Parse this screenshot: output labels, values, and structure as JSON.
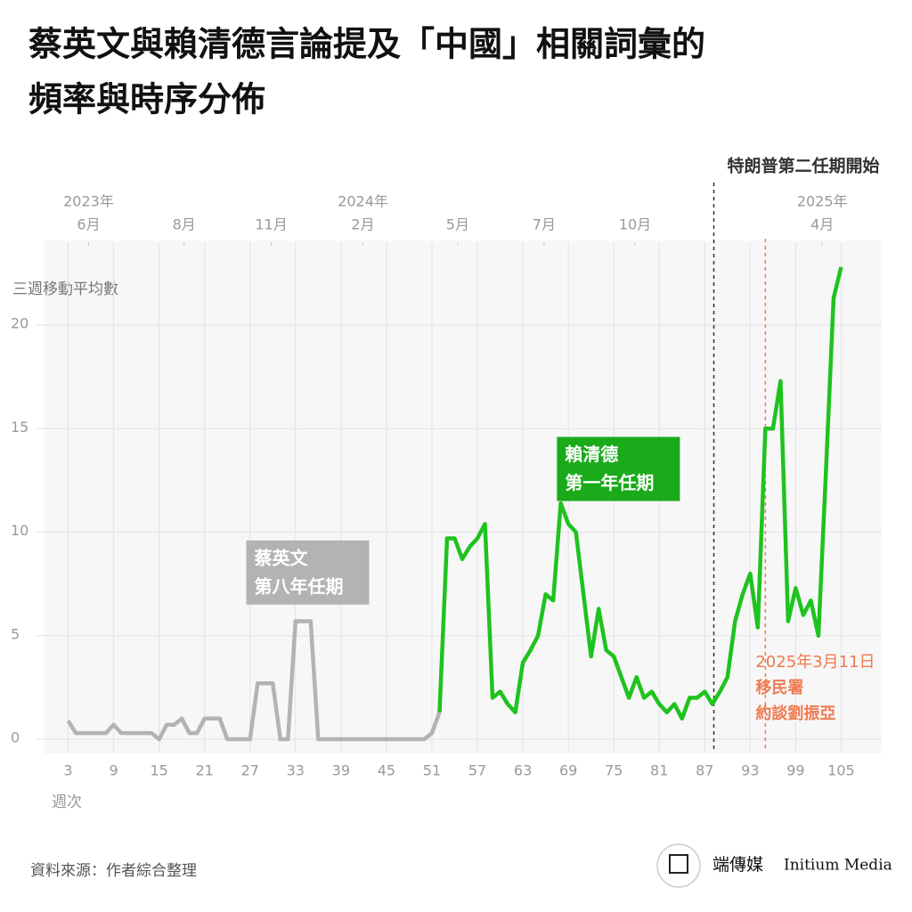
{
  "chart_data": {
    "type": "line",
    "title": [
      "蔡英文與賴清德言論提及「中國」相關詞彙的",
      "頻率與時序分佈"
    ],
    "y_label": "三週移動平均數",
    "x_label": "週次",
    "source": "資料來源：作者綜合整理",
    "brand": {
      "cn": "端傳媒",
      "en": "Initium Media"
    },
    "xlim": [
      0,
      110
    ],
    "ylim": [
      -0.6,
      24
    ],
    "xticks": [
      3,
      9,
      15,
      21,
      27,
      33,
      39,
      45,
      51,
      57,
      63,
      69,
      75,
      81,
      87,
      93,
      99,
      105
    ],
    "yticks": [
      0,
      5,
      10,
      15,
      20
    ],
    "grid": true,
    "top_ticks": [
      {
        "value": 5.7,
        "label": "6月",
        "year": "2023年"
      },
      {
        "value": 18.3,
        "label": "8月"
      },
      {
        "value": 29.8,
        "label": "11月"
      },
      {
        "value": 41.9,
        "label": "2月",
        "year": "2024年"
      },
      {
        "value": 54.4,
        "label": "5月"
      },
      {
        "value": 65.8,
        "label": "7月"
      },
      {
        "value": 77.8,
        "label": "10月"
      },
      {
        "value": 102.5,
        "label": "4月",
        "year": "2025年"
      }
    ],
    "vlines": [
      {
        "value": 88.2,
        "color": "#333333",
        "lines": [
          "特朗普第二任期開始"
        ]
      },
      {
        "value": 95.0,
        "color": "#f07a50",
        "lines": [
          "2025年3月11日",
          "移民署",
          "約談劉振亞"
        ]
      }
    ],
    "series": [
      {
        "name": "蔡英文第八年任期",
        "label_lines": [
          "蔡英文",
          "第八年任期"
        ],
        "label_at": [
          26.5,
          9.6
        ],
        "color": "#b3b3b3",
        "x": [
          3,
          4,
          5,
          6,
          7,
          8,
          9,
          10,
          11,
          12,
          13,
          14,
          15,
          16,
          17,
          18,
          19,
          20,
          21,
          22,
          23,
          24,
          25,
          26,
          27,
          28,
          29,
          30,
          31,
          32,
          33,
          34,
          35,
          36,
          37,
          38,
          39,
          40,
          41,
          42,
          43,
          44,
          45,
          46,
          47,
          48,
          49,
          50,
          51,
          52
        ],
        "values": [
          0.9,
          0.3,
          0.3,
          0.3,
          0.3,
          0.3,
          0.7,
          0.3,
          0.3,
          0.3,
          0.3,
          0.3,
          0,
          0.7,
          0.7,
          1.0,
          0.3,
          0.3,
          1.0,
          1.0,
          1.0,
          0,
          0,
          0,
          0,
          2.7,
          2.7,
          2.7,
          0,
          0,
          5.7,
          5.7,
          5.7,
          0,
          0,
          0,
          0,
          0,
          0,
          0,
          0,
          0,
          0,
          0,
          0,
          0,
          0,
          0,
          0.3,
          1.3
        ]
      },
      {
        "name": "賴清德第一年任期",
        "label_lines": [
          "賴清德",
          "第一年任期"
        ],
        "label_at": [
          67.5,
          14.6
        ],
        "color": "#1ec31e",
        "box_color": "#1aaa1a",
        "x": [
          52,
          53,
          54,
          55,
          56,
          57,
          58,
          59,
          60,
          61,
          62,
          63,
          64,
          65,
          66,
          67,
          68,
          69,
          70,
          71,
          72,
          73,
          74,
          75,
          76,
          77,
          78,
          79,
          80,
          81,
          82,
          83,
          84,
          85,
          86,
          87,
          88,
          89,
          90,
          91,
          92,
          93,
          94,
          95,
          96,
          97,
          98,
          99,
          100,
          101,
          102,
          103,
          104,
          105
        ],
        "values": [
          1.3,
          9.7,
          9.7,
          8.7,
          9.3,
          9.7,
          10.4,
          2.0,
          2.3,
          1.7,
          1.3,
          3.7,
          4.3,
          5.0,
          7.0,
          6.7,
          11.4,
          10.4,
          10.0,
          7.0,
          4.0,
          6.3,
          4.3,
          4.0,
          3.0,
          2.0,
          3.0,
          2.0,
          2.3,
          1.7,
          1.3,
          1.7,
          1.0,
          2.0,
          2.0,
          2.3,
          1.7,
          2.3,
          3.0,
          5.7,
          7.0,
          8.0,
          5.4,
          15.0,
          15.0,
          17.3,
          5.7,
          7.3,
          6.0,
          6.7,
          5.0,
          13.0,
          21.3,
          22.8
        ]
      }
    ]
  }
}
